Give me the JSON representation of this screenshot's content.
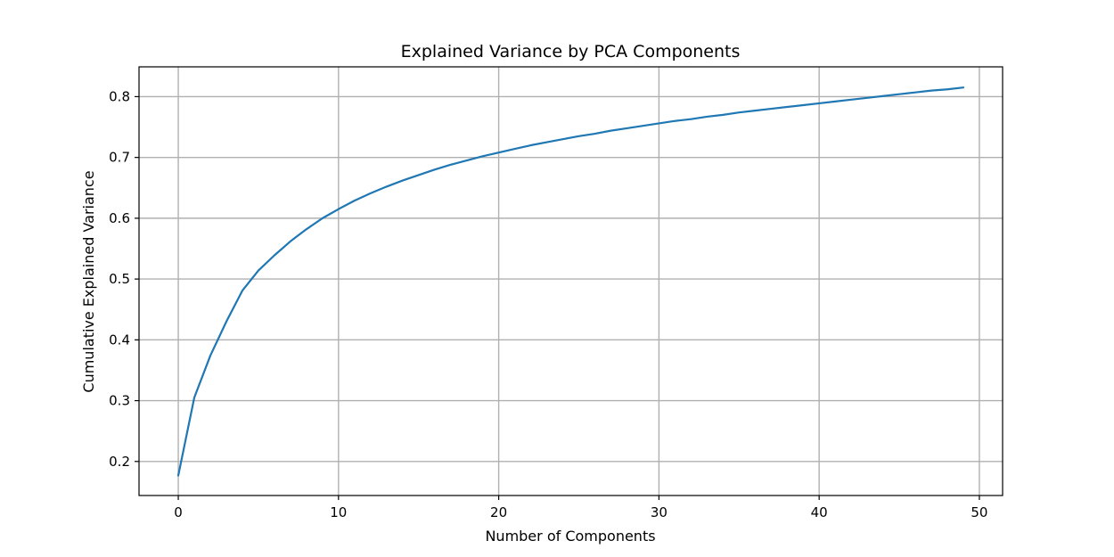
{
  "chart_data": {
    "type": "line",
    "title": "Explained Variance by PCA Components",
    "xlabel": "Number of Components",
    "ylabel": "Cumulative Explained Variance",
    "xlim": [
      -2.45,
      51.45
    ],
    "ylim": [
      0.144,
      0.849
    ],
    "x_ticks": [
      0,
      10,
      20,
      30,
      40,
      50
    ],
    "y_ticks": [
      0.2,
      0.3,
      0.4,
      0.5,
      0.6,
      0.7,
      0.8
    ],
    "x_tick_labels": [
      "0",
      "10",
      "20",
      "30",
      "40",
      "50"
    ],
    "y_tick_labels": [
      "0.2",
      "0.3",
      "0.4",
      "0.5",
      "0.6",
      "0.7",
      "0.8"
    ],
    "grid": true,
    "series": [
      {
        "color": "#1f77b4",
        "x": [
          0,
          1,
          2,
          3,
          4,
          5,
          6,
          7,
          8,
          9,
          10,
          11,
          12,
          13,
          14,
          15,
          16,
          17,
          18,
          19,
          20,
          21,
          22,
          23,
          24,
          25,
          26,
          27,
          28,
          29,
          30,
          31,
          32,
          33,
          34,
          35,
          36,
          37,
          38,
          39,
          40,
          41,
          42,
          43,
          44,
          45,
          46,
          47,
          48,
          49
        ],
        "y": [
          0.177,
          0.305,
          0.374,
          0.43,
          0.481,
          0.514,
          0.539,
          0.562,
          0.582,
          0.6,
          0.615,
          0.629,
          0.641,
          0.652,
          0.662,
          0.671,
          0.68,
          0.688,
          0.695,
          0.702,
          0.708,
          0.714,
          0.72,
          0.725,
          0.73,
          0.735,
          0.739,
          0.744,
          0.748,
          0.752,
          0.756,
          0.76,
          0.763,
          0.767,
          0.77,
          0.774,
          0.777,
          0.78,
          0.783,
          0.786,
          0.789,
          0.792,
          0.795,
          0.798,
          0.801,
          0.804,
          0.807,
          0.81,
          0.812,
          0.815
        ]
      }
    ]
  }
}
